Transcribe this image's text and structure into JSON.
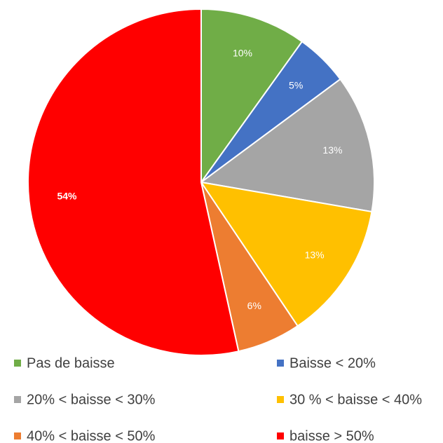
{
  "chart_data": {
    "type": "pie",
    "categories": [
      "Pas de baisse",
      "Baisse < 20%",
      "20% < baisse < 30%",
      "30 % < baisse < 40%",
      "40% < baisse < 50%",
      "baisse > 50%"
    ],
    "values": [
      10,
      5,
      13,
      13,
      6,
      54
    ],
    "value_labels": [
      "10%",
      "5%",
      "13%",
      "13%",
      "6%",
      "54%"
    ],
    "colors": [
      "#70ad47",
      "#4472c4",
      "#a5a5a5",
      "#ffc000",
      "#ed7d31",
      "#ff0000"
    ],
    "legend": "bottom"
  }
}
